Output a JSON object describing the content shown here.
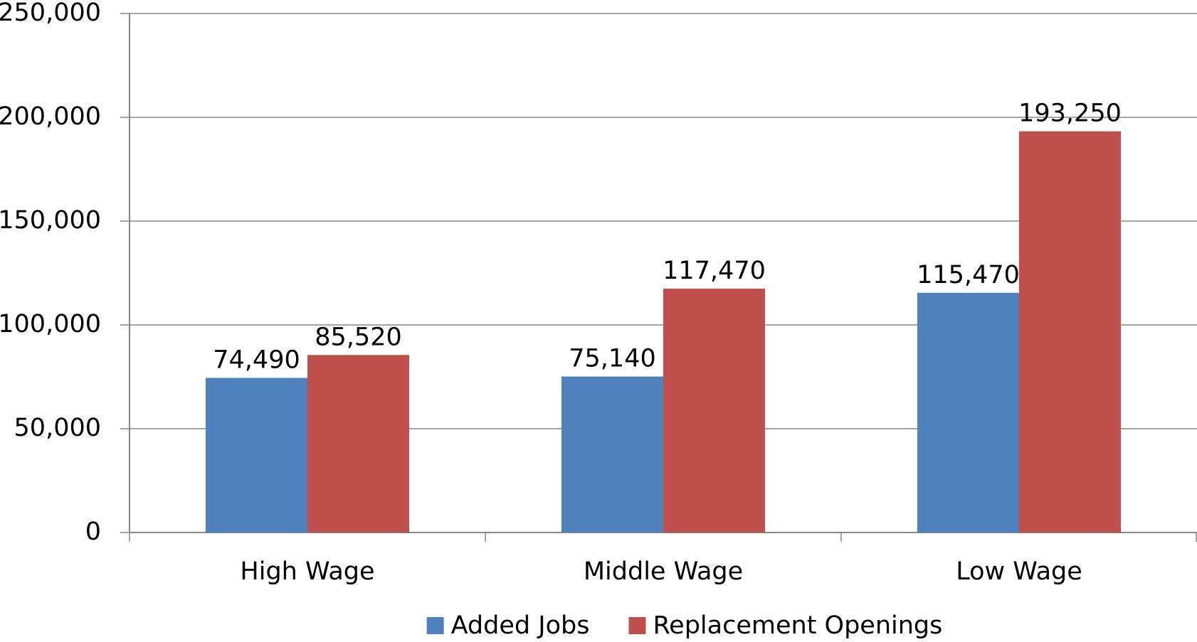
{
  "chart_data": {
    "type": "bar",
    "categories": [
      "High Wage",
      "Middle Wage",
      "Low Wage"
    ],
    "series": [
      {
        "name": "Added Jobs",
        "color": "#4f81bd",
        "values": [
          74490,
          75140,
          115470
        ],
        "value_labels": [
          "74,490",
          "75,140",
          "115,470"
        ]
      },
      {
        "name": "Replacement Openings",
        "color": "#c0504d",
        "values": [
          85520,
          117470,
          193250
        ],
        "value_labels": [
          "85,520",
          "117,470",
          "193,250"
        ]
      }
    ],
    "ylim": [
      0,
      250000
    ],
    "yticks": [
      0,
      {
        "value": 50000,
        "label": "50,000"
      },
      {
        "value": 100000,
        "label": "100,000"
      },
      {
        "value": 150000,
        "label": "150,000"
      },
      {
        "value": 200000,
        "label": "200,000"
      },
      {
        "value": 250000,
        "label": "250,000"
      }
    ],
    "grid": true,
    "legend": "bottom"
  }
}
